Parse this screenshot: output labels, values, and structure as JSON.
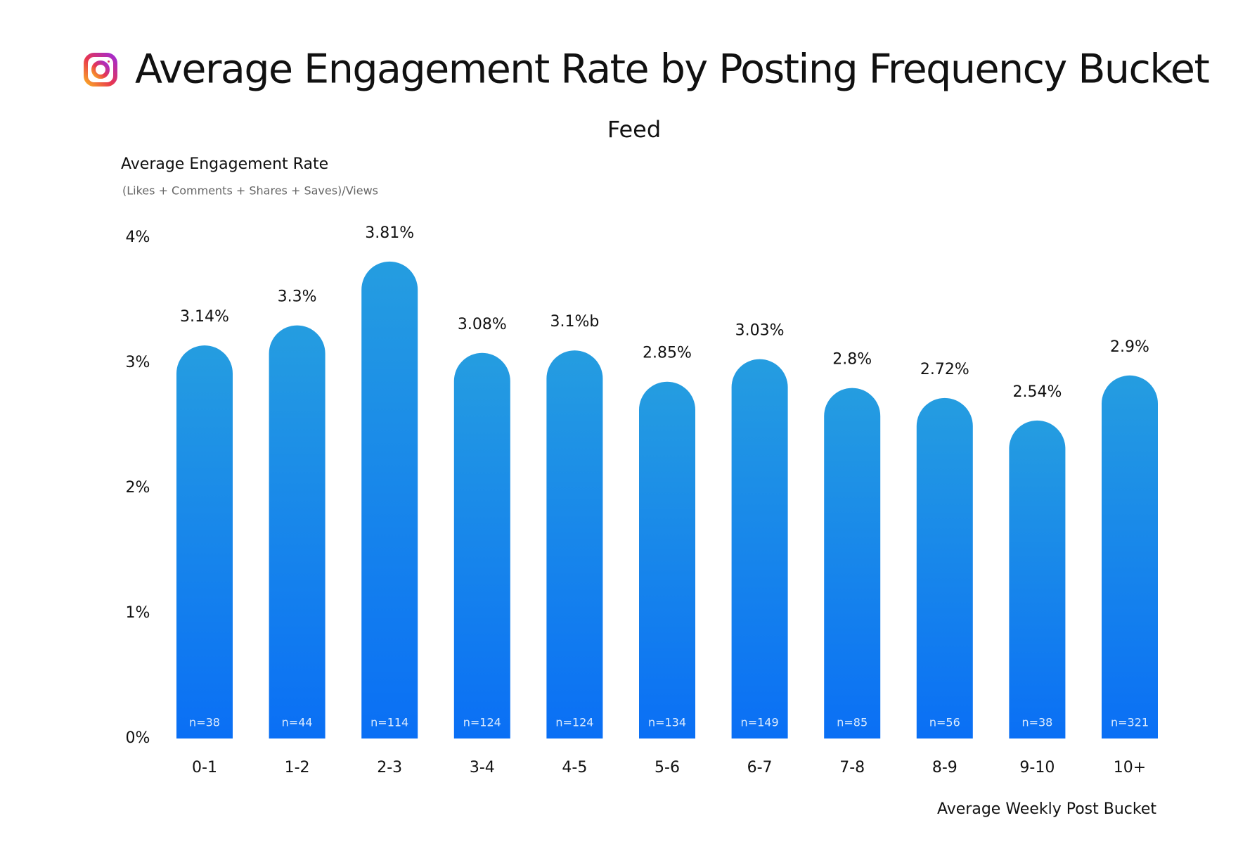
{
  "chart_data": {
    "type": "bar",
    "title": "Average Engagement Rate by Posting Frequency Bucket",
    "subtitle": "Feed",
    "y_axis_title": "Average Engagement Rate",
    "y_axis_subtitle": "(Likes + Comments + Shares + Saves)/Views",
    "x_axis_title": "Average Weekly Post Bucket",
    "categories": [
      "0-1",
      "1-2",
      "2-3",
      "3-4",
      "4-5",
      "5-6",
      "6-7",
      "7-8",
      "8-9",
      "9-10",
      "10+"
    ],
    "values": [
      3.14,
      3.3,
      3.81,
      3.08,
      3.1,
      2.85,
      3.03,
      2.8,
      2.72,
      2.54,
      2.9
    ],
    "value_labels": [
      "3.14%",
      "3.3%",
      "3.81%",
      "3.08%",
      "3.1%b",
      "2.85%",
      "3.03%",
      "2.8%",
      "2.72%",
      "2.54%",
      "2.9%"
    ],
    "sample_labels": [
      "n=38",
      "n=44",
      "n=114",
      "n=124",
      "n=124",
      "n=134",
      "n=149",
      "n=85",
      "n=56",
      "n=38",
      "n=321"
    ],
    "color": "#0a6ff5",
    "ylim": [
      0,
      4
    ],
    "yticks": [
      {
        "value": 0,
        "label": "0%"
      },
      {
        "value": 1,
        "label": "1%"
      },
      {
        "value": 2,
        "label": "2%"
      },
      {
        "value": 3,
        "label": "3%"
      },
      {
        "value": 4,
        "label": "4%"
      }
    ],
    "grid": false
  }
}
